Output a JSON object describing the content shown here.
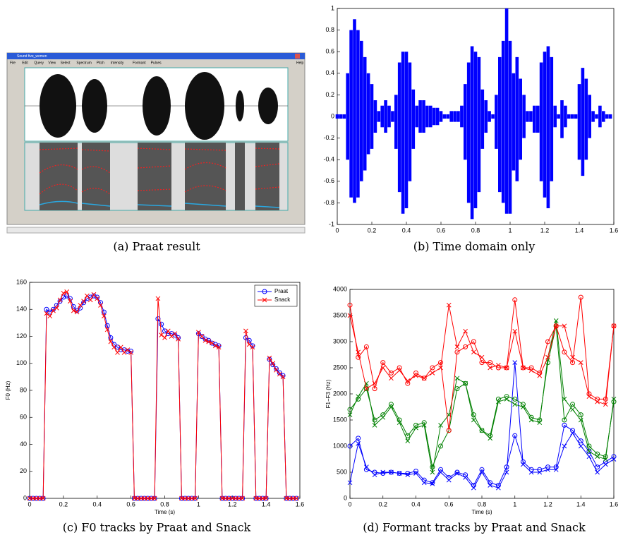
{
  "screenshot": {
    "window_title": "Sound five_women",
    "menu": [
      "File",
      "Edit",
      "Query",
      "View",
      "Select",
      "Spectrum",
      "Pitch",
      "Intensity",
      "Formant",
      "Pulses",
      "Help"
    ],
    "caption": "(a) Praat result"
  },
  "chart_data": [
    {
      "type": "range",
      "caption": "(b) Time domain only",
      "color": "#0000ff",
      "xlim": [
        0,
        1.6
      ],
      "ylim": [
        -1,
        1
      ],
      "xticks": [
        0,
        0.2,
        0.4,
        0.6,
        0.8,
        1,
        1.2,
        1.4,
        1.6
      ],
      "yticks": [
        -1,
        -0.8,
        -0.6,
        -0.4,
        -0.2,
        0,
        0.2,
        0.4,
        0.6,
        0.8,
        1
      ],
      "x": [
        0,
        0.02,
        0.04,
        0.06,
        0.08,
        0.1,
        0.12,
        0.14,
        0.16,
        0.18,
        0.2,
        0.22,
        0.24,
        0.26,
        0.28,
        0.3,
        0.32,
        0.34,
        0.36,
        0.38,
        0.4,
        0.42,
        0.44,
        0.46,
        0.48,
        0.5,
        0.52,
        0.54,
        0.56,
        0.58,
        0.6,
        0.62,
        0.64,
        0.66,
        0.68,
        0.7,
        0.72,
        0.74,
        0.76,
        0.78,
        0.8,
        0.82,
        0.84,
        0.86,
        0.88,
        0.9,
        0.92,
        0.94,
        0.96,
        0.98,
        1,
        1.02,
        1.04,
        1.06,
        1.08,
        1.1,
        1.12,
        1.14,
        1.16,
        1.18,
        1.2,
        1.22,
        1.24,
        1.26,
        1.28,
        1.3,
        1.32,
        1.34,
        1.36,
        1.38,
        1.4,
        1.42,
        1.44,
        1.46,
        1.48,
        1.5,
        1.52,
        1.54,
        1.56,
        1.58
      ],
      "high": [
        0.02,
        0.02,
        0.02,
        0.4,
        0.8,
        0.9,
        0.8,
        0.7,
        0.55,
        0.4,
        0.3,
        0.15,
        0.05,
        0.1,
        0.15,
        0.1,
        0.05,
        0.2,
        0.5,
        0.6,
        0.6,
        0.5,
        0.25,
        0.1,
        0.15,
        0.15,
        0.1,
        0.1,
        0.08,
        0.08,
        0.05,
        0.02,
        0.02,
        0.05,
        0.05,
        0.05,
        0.1,
        0.3,
        0.5,
        0.65,
        0.6,
        0.55,
        0.25,
        0.15,
        0.05,
        0.02,
        0.2,
        0.55,
        0.7,
        1.0,
        0.7,
        0.4,
        0.55,
        0.35,
        0.2,
        0.05,
        0.05,
        0.1,
        0.1,
        0.5,
        0.6,
        0.65,
        0.55,
        0.1,
        0.02,
        0.15,
        0.1,
        0.02,
        0.02,
        0.02,
        0.3,
        0.45,
        0.35,
        0.2,
        0.05,
        0.02,
        0.1,
        0.05,
        0.02,
        0.02
      ],
      "low": [
        -0.02,
        -0.02,
        -0.02,
        -0.4,
        -0.75,
        -0.8,
        -0.75,
        -0.6,
        -0.5,
        -0.35,
        -0.3,
        -0.15,
        -0.05,
        -0.1,
        -0.15,
        -0.1,
        -0.05,
        -0.3,
        -0.7,
        -0.9,
        -0.85,
        -0.6,
        -0.3,
        -0.1,
        -0.15,
        -0.15,
        -0.1,
        -0.1,
        -0.08,
        -0.08,
        -0.05,
        -0.02,
        -0.02,
        -0.05,
        -0.05,
        -0.05,
        -0.1,
        -0.4,
        -0.8,
        -0.95,
        -0.85,
        -0.7,
        -0.3,
        -0.15,
        -0.05,
        -0.02,
        -0.3,
        -0.7,
        -0.8,
        -0.9,
        -0.9,
        -0.5,
        -0.6,
        -0.4,
        -0.2,
        -0.05,
        -0.05,
        -0.15,
        -0.15,
        -0.6,
        -0.75,
        -0.85,
        -0.6,
        -0.1,
        -0.02,
        -0.2,
        -0.1,
        -0.02,
        -0.02,
        -0.02,
        -0.4,
        -0.55,
        -0.4,
        -0.2,
        -0.05,
        -0.02,
        -0.1,
        -0.05,
        -0.02,
        -0.02
      ]
    },
    {
      "type": "line",
      "caption": "(c) F0 tracks by Praat and Snack",
      "x_label": "Time (s)",
      "y_label": "F0 (Hz)",
      "legend": "upper right",
      "xlim": [
        0,
        1.6
      ],
      "ylim": [
        0,
        160
      ],
      "xticks": [
        0,
        0.2,
        0.4,
        0.6,
        0.8,
        1,
        1.2,
        1.4,
        1.6
      ],
      "yticks": [
        0,
        20,
        40,
        60,
        80,
        100,
        120,
        140,
        160
      ],
      "x": [
        0,
        0.02,
        0.04,
        0.06,
        0.08,
        0.1,
        0.12,
        0.14,
        0.16,
        0.18,
        0.2,
        0.22,
        0.24,
        0.26,
        0.28,
        0.3,
        0.32,
        0.34,
        0.36,
        0.38,
        0.4,
        0.42,
        0.44,
        0.46,
        0.48,
        0.5,
        0.52,
        0.54,
        0.56,
        0.58,
        0.6,
        0.62,
        0.64,
        0.66,
        0.68,
        0.7,
        0.72,
        0.74,
        0.76,
        0.78,
        0.8,
        0.82,
        0.84,
        0.86,
        0.88,
        0.9,
        0.92,
        0.94,
        0.96,
        0.98,
        1,
        1.02,
        1.04,
        1.06,
        1.08,
        1.1,
        1.12,
        1.14,
        1.16,
        1.18,
        1.2,
        1.22,
        1.24,
        1.26,
        1.28,
        1.3,
        1.32,
        1.34,
        1.36,
        1.38,
        1.4,
        1.42,
        1.44,
        1.46,
        1.48,
        1.5,
        1.52,
        1.54,
        1.56,
        1.58
      ],
      "series": [
        {
          "name": "Praat",
          "color": "#0000ff",
          "marker": "o",
          "values": [
            0,
            0,
            0,
            0,
            0,
            140,
            138,
            140,
            143,
            146,
            149,
            150,
            148,
            142,
            139,
            141,
            145,
            148,
            149,
            150,
            149,
            145,
            138,
            128,
            119,
            114,
            112,
            110,
            110,
            109,
            109,
            0,
            0,
            0,
            0,
            0,
            0,
            0,
            133,
            129,
            124,
            122,
            122,
            121,
            119,
            0,
            0,
            0,
            0,
            0,
            122,
            120,
            118,
            117,
            115,
            114,
            113,
            0,
            0,
            0,
            0,
            0,
            0,
            0,
            119,
            117,
            113,
            0,
            0,
            0,
            0,
            103,
            99,
            96,
            93,
            91,
            0,
            0,
            0,
            0
          ]
        },
        {
          "name": "Snack",
          "color": "#ff0000",
          "marker": "x",
          "values": [
            0,
            0,
            0,
            0,
            0,
            137,
            135,
            139,
            141,
            147,
            152,
            153,
            146,
            139,
            138,
            143,
            146,
            150,
            147,
            151,
            148,
            143,
            135,
            125,
            116,
            112,
            108,
            112,
            108,
            110,
            108,
            0,
            0,
            0,
            0,
            0,
            0,
            0,
            148,
            121,
            119,
            124,
            120,
            122,
            118,
            0,
            0,
            0,
            0,
            0,
            123,
            120,
            117,
            116,
            115,
            113,
            112,
            0,
            0,
            0,
            0,
            0,
            0,
            0,
            124,
            114,
            112,
            0,
            0,
            0,
            0,
            104,
            100,
            95,
            92,
            90,
            0,
            0,
            0,
            0
          ]
        }
      ]
    },
    {
      "type": "line",
      "caption": "(d) Formant tracks by Praat and Snack",
      "x_label": "Time (s)",
      "y_label": "F1−F3 (Hz)",
      "xlim": [
        0,
        1.6
      ],
      "ylim": [
        0,
        4000
      ],
      "xticks": [
        0,
        0.2,
        0.4,
        0.6,
        0.8,
        1,
        1.2,
        1.4,
        1.6
      ],
      "yticks": [
        0,
        500,
        1000,
        1500,
        2000,
        2500,
        3000,
        3500,
        4000
      ],
      "x": [
        0,
        0.05,
        0.1,
        0.15,
        0.2,
        0.25,
        0.3,
        0.35,
        0.4,
        0.45,
        0.5,
        0.55,
        0.6,
        0.65,
        0.7,
        0.75,
        0.8,
        0.85,
        0.9,
        0.95,
        1,
        1.05,
        1.1,
        1.15,
        1.2,
        1.25,
        1.3,
        1.35,
        1.4,
        1.45,
        1.5,
        1.55,
        1.6
      ],
      "series": [
        {
          "color": "#0000ff",
          "marker": "o",
          "values": [
            1000,
            1150,
            550,
            500,
            480,
            500,
            480,
            480,
            520,
            350,
            300,
            550,
            400,
            500,
            450,
            250,
            550,
            300,
            250,
            600,
            1200,
            700,
            550,
            550,
            600,
            600,
            1400,
            1300,
            1100,
            900,
            600,
            700,
            800
          ]
        },
        {
          "color": "#0000ff",
          "marker": "x",
          "values": [
            300,
            1050,
            600,
            450,
            500,
            500,
            480,
            450,
            480,
            300,
            280,
            500,
            350,
            480,
            400,
            200,
            500,
            250,
            200,
            500,
            2600,
            650,
            500,
            500,
            550,
            550,
            1000,
            1250,
            1000,
            800,
            500,
            650,
            750
          ]
        },
        {
          "color": "#008000",
          "marker": "o",
          "values": [
            1700,
            1900,
            2100,
            1500,
            1600,
            1800,
            1500,
            1200,
            1400,
            1450,
            600,
            1000,
            1300,
            2100,
            2200,
            1600,
            1300,
            1200,
            1900,
            1950,
            1900,
            1800,
            1550,
            1500,
            2600,
            3300,
            1500,
            1800,
            1600,
            1000,
            850,
            800,
            1850
          ]
        },
        {
          "color": "#008000",
          "marker": "x",
          "values": [
            1600,
            1950,
            2200,
            1400,
            1550,
            1750,
            1450,
            1100,
            1350,
            1400,
            500,
            1400,
            1600,
            2300,
            2200,
            1500,
            1300,
            1150,
            1850,
            1900,
            1800,
            1750,
            1500,
            1450,
            2700,
            3400,
            1900,
            1700,
            1500,
            900,
            800,
            750,
            1900
          ]
        },
        {
          "color": "#ff0000",
          "marker": "o",
          "values": [
            3700,
            2700,
            2900,
            2100,
            2600,
            2400,
            2500,
            2200,
            2400,
            2300,
            2500,
            2600,
            1300,
            2800,
            2900,
            3000,
            2600,
            2600,
            2500,
            2500,
            3800,
            2500,
            2500,
            2400,
            3000,
            3300,
            2800,
            2600,
            3850,
            2000,
            1900,
            1900,
            3300
          ]
        },
        {
          "color": "#ff0000",
          "marker": "x",
          "values": [
            3500,
            2800,
            2100,
            2200,
            2500,
            2300,
            2450,
            2250,
            2350,
            2300,
            2400,
            2500,
            3700,
            2900,
            3200,
            2800,
            2700,
            2500,
            2550,
            2500,
            3200,
            2500,
            2450,
            2350,
            2700,
            3300,
            3300,
            2700,
            2600,
            1950,
            1850,
            1800,
            3300
          ]
        }
      ]
    }
  ]
}
